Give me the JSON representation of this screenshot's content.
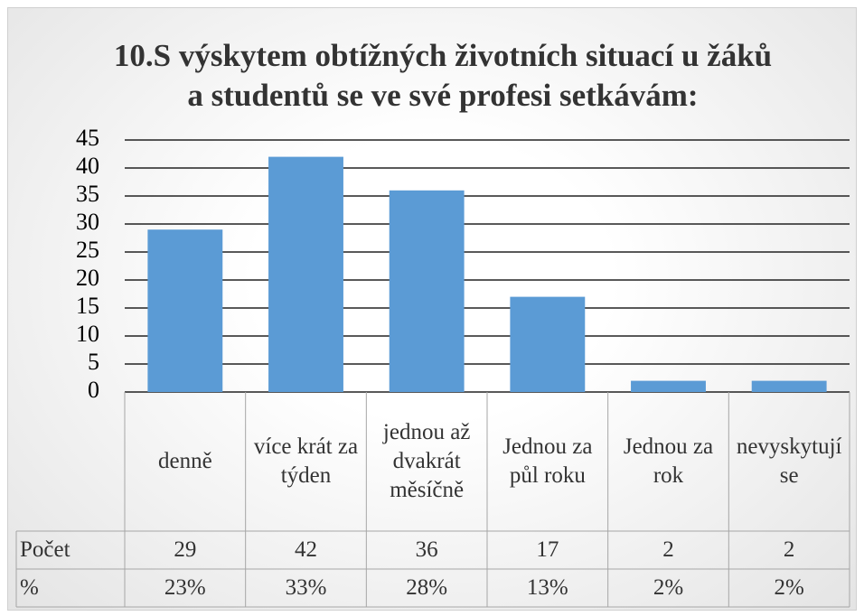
{
  "chart_data": {
    "type": "bar",
    "title": "10.S výskytem obtížných životních situací u žáků a studentů se ve své profesi setkávám:",
    "categories": [
      "denně",
      "více krát za týden",
      "jednou až dvakrát měsíčně",
      "Jednou za půl roku",
      "Jednou za rok",
      "nevyskytují se"
    ],
    "series": [
      {
        "name": "Počet",
        "color": "#5b9bd5",
        "values": [
          29,
          42,
          36,
          17,
          2,
          2
        ]
      }
    ],
    "percent_row": {
      "name": "%",
      "values": [
        23,
        33,
        28,
        13,
        2,
        2
      ],
      "value_labels": [
        "23%",
        "33%",
        "28%",
        "13%",
        "2%",
        "2%"
      ]
    },
    "ylim": [
      0,
      45
    ],
    "yticks": [
      0,
      5,
      10,
      15,
      20,
      25,
      30,
      35,
      40,
      45
    ],
    "grid": true
  }
}
